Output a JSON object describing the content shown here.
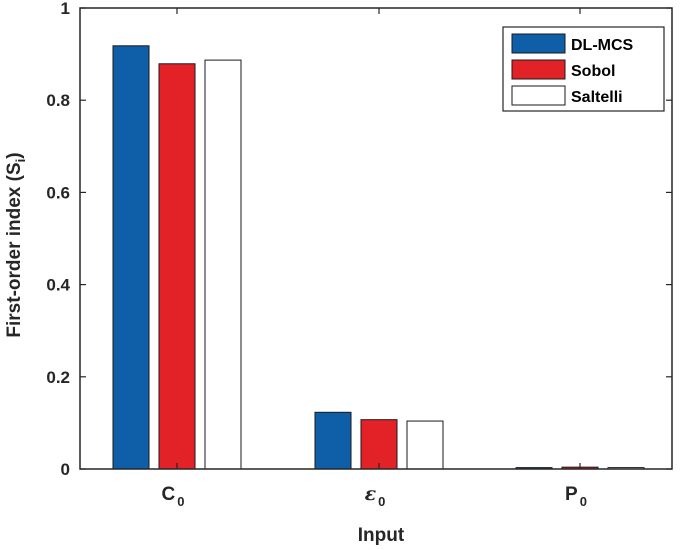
{
  "chart_data": {
    "type": "bar",
    "categories": [
      {
        "base": "C",
        "sub": "0",
        "symbol": false
      },
      {
        "base": "ε",
        "sub": "0",
        "symbol": true
      },
      {
        "base": "P",
        "sub": "0",
        "symbol": false
      }
    ],
    "series": [
      {
        "name": "DL-MCS",
        "color": "#0f5ea8",
        "values": [
          0.918,
          0.123,
          0.003
        ]
      },
      {
        "name": "Sobol",
        "color": "#e32228",
        "values": [
          0.879,
          0.107,
          0.004
        ]
      },
      {
        "name": "Saltelli",
        "color": "#ffffff",
        "values": [
          0.887,
          0.104,
          0.003
        ]
      }
    ],
    "xlabel": "Input",
    "ylabel": {
      "text": "First-order index (S",
      "sub": "i",
      "close": ")"
    },
    "ylim": [
      0,
      1
    ],
    "yticks": [
      "0",
      "0.2",
      "0.4",
      "0.6",
      "0.8",
      "1"
    ],
    "ytick_values": [
      0,
      0.2,
      0.4,
      0.6,
      0.8,
      1
    ],
    "legend_position": "top-right",
    "grid": false
  }
}
